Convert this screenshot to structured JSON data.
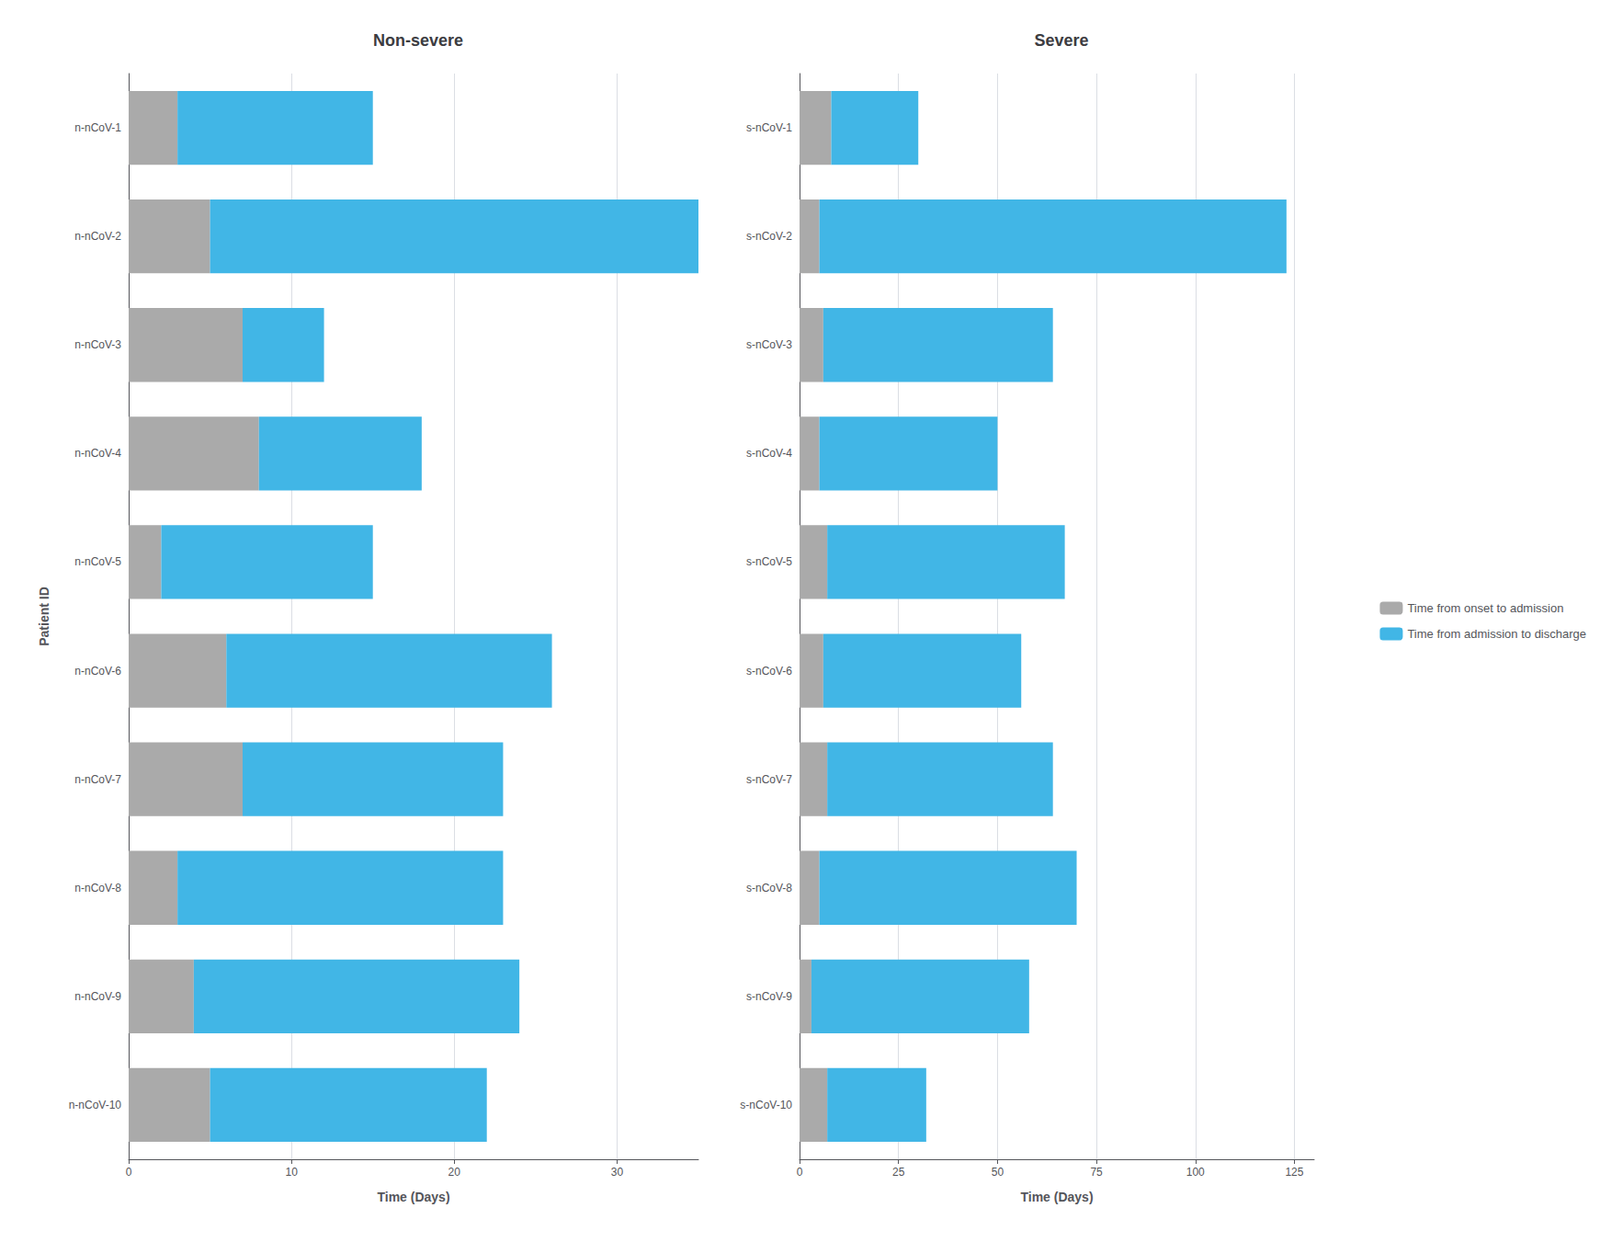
{
  "chart_data": [
    {
      "type": "bar",
      "orientation": "horizontal",
      "stacked": true,
      "grid": true,
      "title": "Non-severe",
      "xlabel": "Time (Days)",
      "ylabel": "Patient ID",
      "categories": [
        "n-nCoV-1",
        "n-nCoV-2",
        "n-nCoV-3",
        "n-nCoV-4",
        "n-nCoV-5",
        "n-nCoV-6",
        "n-nCoV-7",
        "n-nCoV-8",
        "n-nCoV-9",
        "n-nCoV-10"
      ],
      "series": [
        {
          "name": "Time from onset to admission",
          "color": "#AAAAAA",
          "values": [
            3,
            5,
            7,
            8,
            2,
            6,
            7,
            3,
            4,
            5
          ]
        },
        {
          "name": "Time from admission to discharge",
          "color": "#41B6E6",
          "values": [
            12,
            30,
            5,
            10,
            13,
            20,
            16,
            20,
            20,
            17
          ]
        }
      ],
      "xlim": [
        0,
        35
      ],
      "xticks": [
        0,
        10,
        20,
        30
      ]
    },
    {
      "type": "bar",
      "orientation": "horizontal",
      "stacked": true,
      "grid": true,
      "legend": "right",
      "title": "Severe",
      "xlabel": "Time (Days)",
      "categories": [
        "s-nCoV-1",
        "s-nCoV-2",
        "s-nCoV-3",
        "s-nCoV-4",
        "s-nCoV-5",
        "s-nCoV-6",
        "s-nCoV-7",
        "s-nCoV-8",
        "s-nCoV-9",
        "s-nCoV-10"
      ],
      "series": [
        {
          "name": "Time from onset to admission",
          "color": "#AAAAAA",
          "values": [
            8,
            5,
            6,
            5,
            7,
            6,
            7,
            5,
            3,
            7
          ]
        },
        {
          "name": "Time from admission to discharge",
          "color": "#41B6E6",
          "values": [
            22,
            118,
            58,
            45,
            60,
            50,
            57,
            65,
            55,
            25
          ]
        }
      ],
      "xlim": [
        0,
        130
      ],
      "xticks": [
        0,
        25,
        50,
        75,
        100,
        125
      ]
    }
  ]
}
